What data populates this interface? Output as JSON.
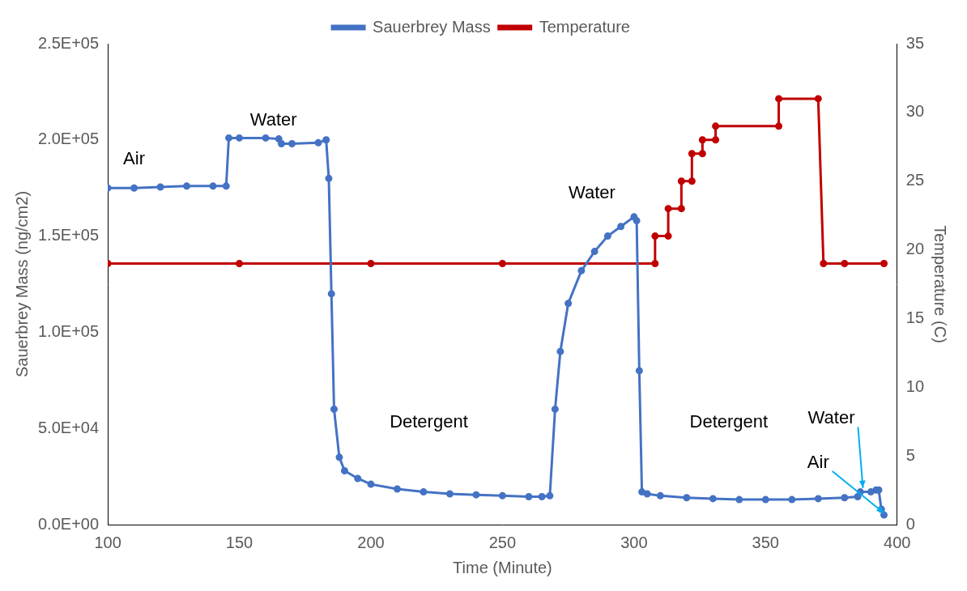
{
  "chart_data": {
    "type": "line",
    "x_label": "Time (Minute)",
    "y_label": "Sauerbrey Mass (ng/cm2)",
    "y2_label": "Temperature (C)",
    "xlim": [
      100,
      400
    ],
    "xticks": [
      100,
      150,
      200,
      250,
      300,
      350,
      400
    ],
    "ylim": [
      0,
      250000
    ],
    "yticks": [
      {
        "value": 0,
        "label": "0.0E+00"
      },
      {
        "value": 50000,
        "label": "5.0E+04"
      },
      {
        "value": 100000,
        "label": "1.0E+05"
      },
      {
        "value": 150000,
        "label": "1.5E+05"
      },
      {
        "value": 200000,
        "label": "2.0E+05"
      },
      {
        "value": 250000,
        "label": "2.5E+05"
      }
    ],
    "y2lim": [
      0,
      35
    ],
    "y2ticks": [
      0,
      5,
      10,
      15,
      20,
      25,
      30,
      35
    ],
    "grid": false,
    "legend": "top",
    "series": [
      {
        "name": "Sauerbrey Mass",
        "color": "#4472c4",
        "marker": "circle",
        "axis": "y",
        "x": [
          100,
          110,
          120,
          130,
          140,
          145,
          146,
          150,
          160,
          165,
          166,
          170,
          180,
          183,
          184,
          185,
          186,
          188,
          190,
          195,
          200,
          210,
          220,
          230,
          240,
          250,
          260,
          265,
          268,
          270,
          272,
          275,
          280,
          285,
          290,
          295,
          300,
          301,
          302,
          303,
          305,
          310,
          320,
          330,
          340,
          350,
          360,
          370,
          380,
          385,
          386,
          390,
          392,
          393,
          394,
          395
        ],
        "values": [
          175000,
          175000,
          175500,
          176000,
          176000,
          176000,
          201000,
          201000,
          201000,
          200500,
          198000,
          198000,
          198500,
          200000,
          180000,
          120000,
          60000,
          35000,
          28000,
          24000,
          21000,
          18500,
          17000,
          16000,
          15500,
          15000,
          14500,
          14500,
          15000,
          60000,
          90000,
          115000,
          132000,
          142000,
          150000,
          155000,
          160000,
          158000,
          80000,
          17000,
          16000,
          15000,
          14000,
          13500,
          13000,
          13000,
          13000,
          13500,
          14000,
          14500,
          17000,
          17000,
          18000,
          18000,
          8000,
          5000
        ]
      },
      {
        "name": "Temperature",
        "color": "#c00000",
        "marker": "circle",
        "axis": "y2",
        "x": [
          100,
          150,
          200,
          250,
          308,
          308,
          313,
          313,
          318,
          318,
          322,
          322,
          326,
          326,
          331,
          331,
          355,
          355,
          370,
          372,
          380,
          395
        ],
        "values": [
          19,
          19,
          19,
          19,
          19,
          21,
          21,
          23,
          23,
          25,
          25,
          27,
          27,
          28,
          28,
          29,
          29,
          31,
          31,
          19,
          19,
          19
        ]
      }
    ],
    "annotations": [
      {
        "text": "Air",
        "x": 110,
        "y": 190000
      },
      {
        "text": "Water",
        "x": 163,
        "y": 210000
      },
      {
        "text": "Detergent",
        "x": 222,
        "y": 53000
      },
      {
        "text": "Water",
        "x": 284,
        "y": 172000
      },
      {
        "text": "Detergent",
        "x": 336,
        "y": 53000
      },
      {
        "text": "Water",
        "x": 375,
        "y": 55000,
        "arrow_to": [
          387,
          19000
        ]
      },
      {
        "text": "Air",
        "x": 370,
        "y": 32000,
        "arrow_to": [
          395,
          6000
        ]
      }
    ]
  }
}
